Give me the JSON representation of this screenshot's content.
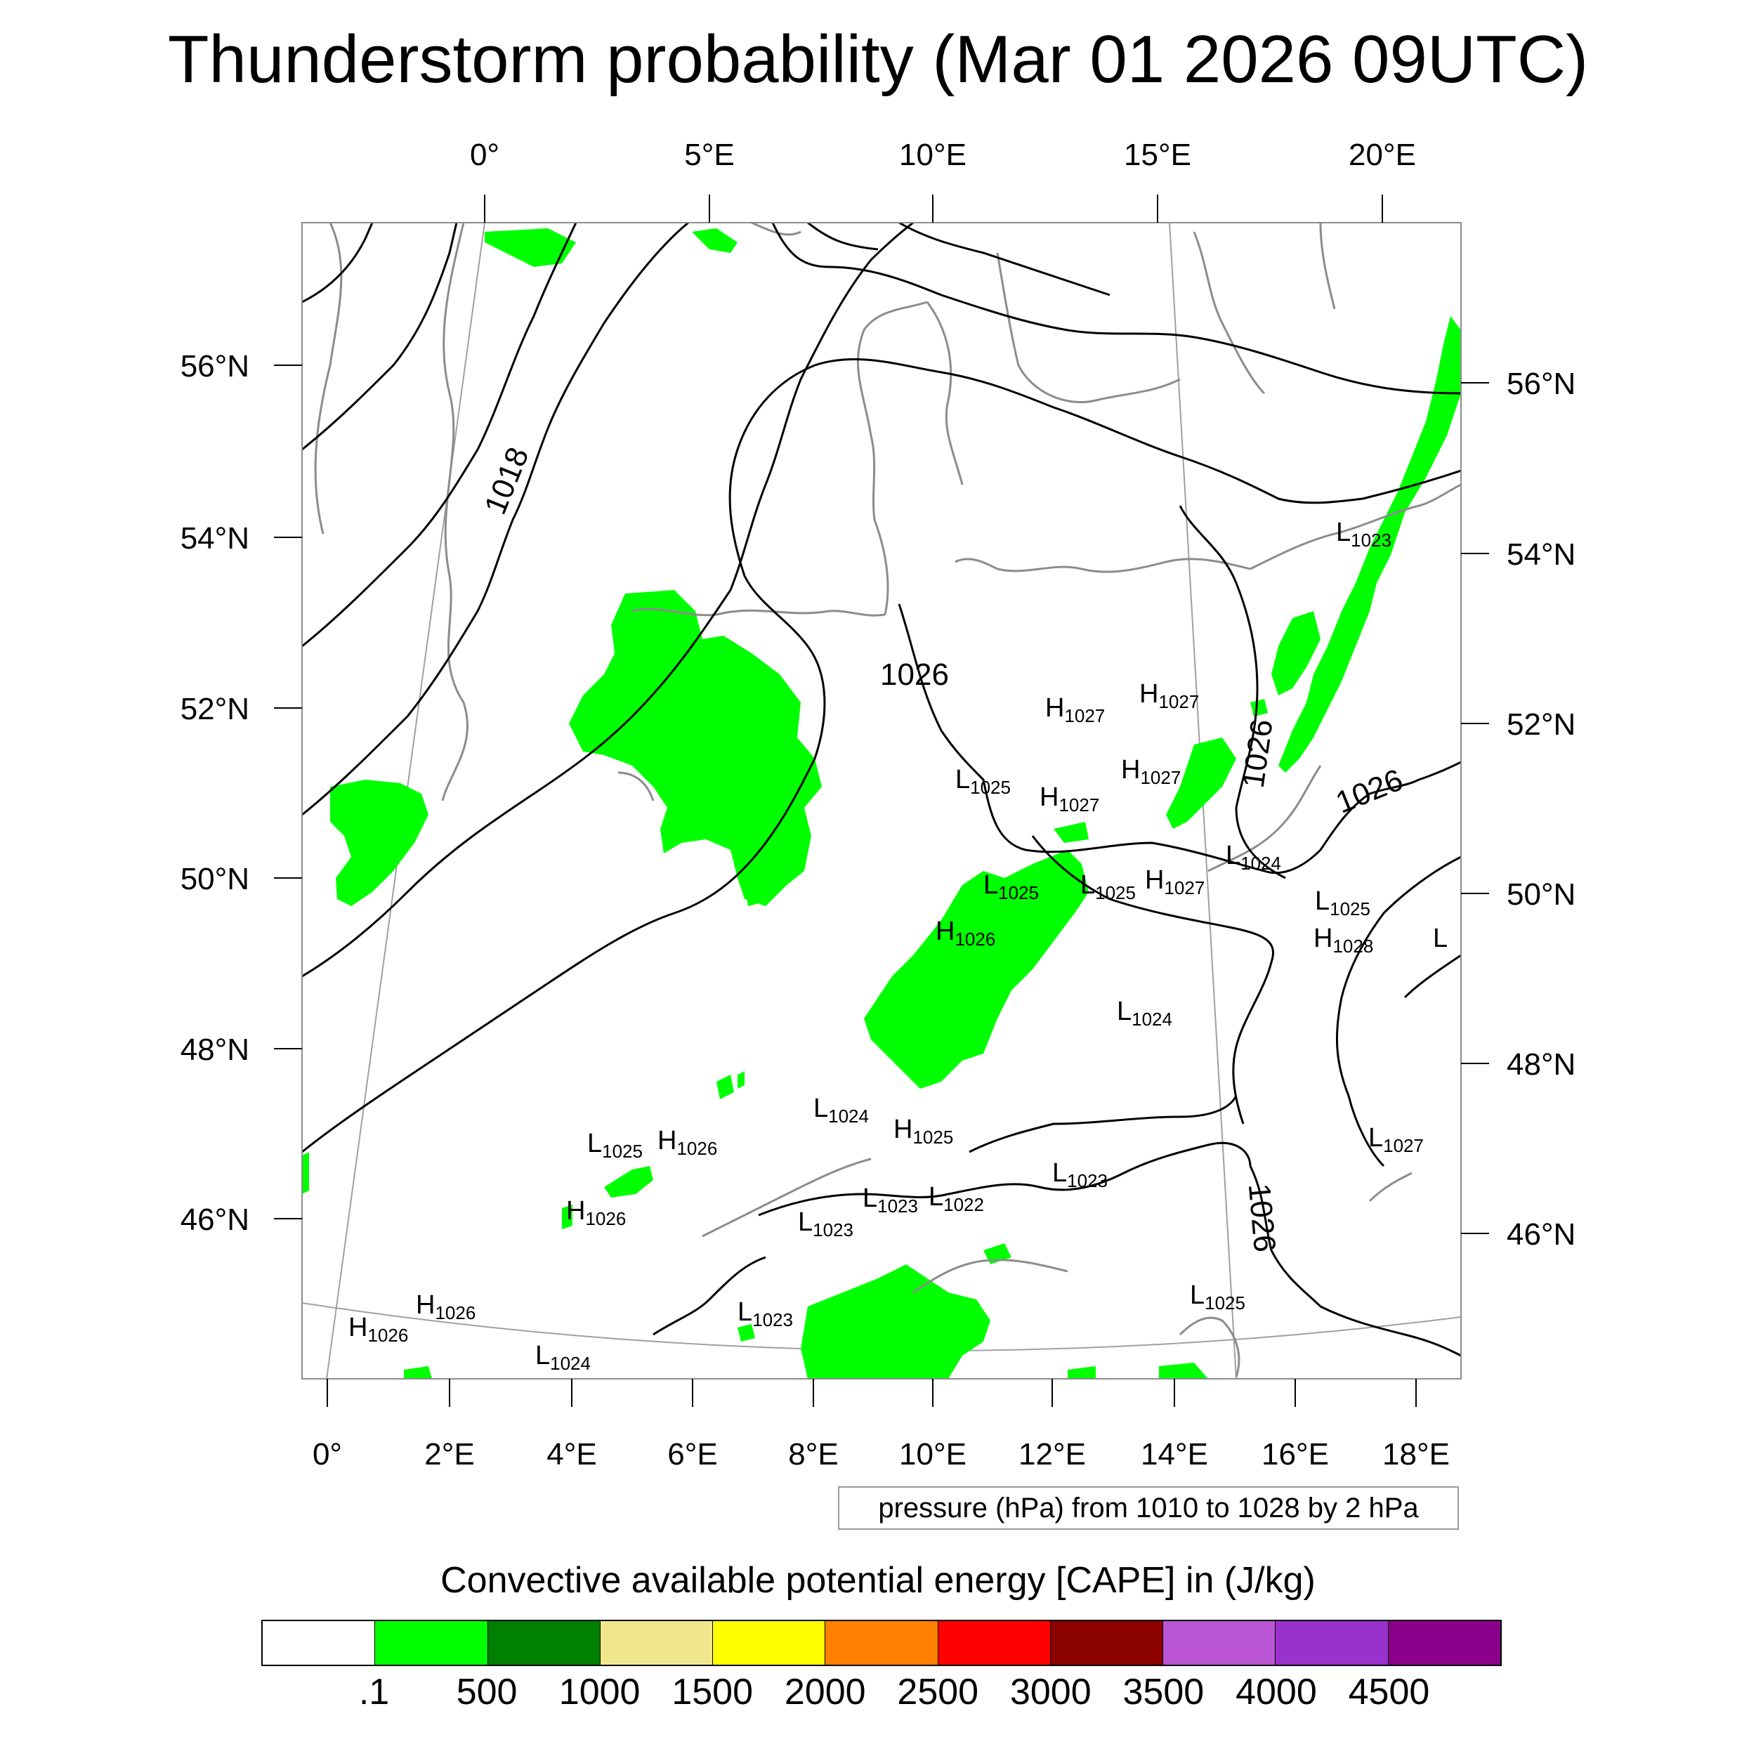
{
  "title": "Thunderstorm probability (Mar 01 2026 09UTC)",
  "map": {
    "lon_labels_top": [
      "0°",
      "5°E",
      "10°E",
      "15°E",
      "20°E"
    ],
    "lon_labels_bottom": [
      "0°",
      "2°E",
      "4°E",
      "6°E",
      "8°E",
      "10°E",
      "12°E",
      "14°E",
      "16°E",
      "18°E"
    ],
    "lat_labels_left": [
      "56°N",
      "54°N",
      "52°N",
      "50°N",
      "48°N",
      "46°N"
    ],
    "lat_labels_right": [
      "56°N",
      "54°N",
      "52°N",
      "50°N",
      "48°N",
      "46°N"
    ],
    "isobar_labels": [
      "1018",
      "1026",
      "1026",
      "1026",
      "1026"
    ],
    "pressure_centers": [
      {
        "type": "L",
        "value": "1023"
      },
      {
        "type": "H",
        "value": "1027"
      },
      {
        "type": "H",
        "value": "1027"
      },
      {
        "type": "H",
        "value": "1027"
      },
      {
        "type": "L",
        "value": "1025"
      },
      {
        "type": "H",
        "value": "1027"
      },
      {
        "type": "L",
        "value": "1024"
      },
      {
        "type": "L",
        "value": "1025"
      },
      {
        "type": "L",
        "value": "1025"
      },
      {
        "type": "H",
        "value": "1027"
      },
      {
        "type": "L",
        "value": "1025"
      },
      {
        "type": "H",
        "value": "1026"
      },
      {
        "type": "H",
        "value": "1028"
      },
      {
        "type": "L",
        "value": ""
      },
      {
        "type": "L",
        "value": "1024"
      },
      {
        "type": "L",
        "value": "1024"
      },
      {
        "type": "H",
        "value": "1025"
      },
      {
        "type": "L",
        "value": "1027"
      },
      {
        "type": "L",
        "value": "1025"
      },
      {
        "type": "H",
        "value": "1026"
      },
      {
        "type": "L",
        "value": "1023"
      },
      {
        "type": "L",
        "value": "1023"
      },
      {
        "type": "L",
        "value": "1022"
      },
      {
        "type": "H",
        "value": "1026"
      },
      {
        "type": "L",
        "value": "1023"
      },
      {
        "type": "H",
        "value": "1026"
      },
      {
        "type": "H",
        "value": "1026"
      },
      {
        "type": "L",
        "value": "1024"
      },
      {
        "type": "L",
        "value": "1023"
      },
      {
        "type": "L",
        "value": "1025"
      }
    ]
  },
  "info_box": "pressure (hPa) from 1010 to 1028 by 2 hPa",
  "legend": {
    "title": "Convective available potential energy [CAPE] in (J/kg)",
    "colors": [
      "#ffffff",
      "#00ff00",
      "#008000",
      "#f0e68c",
      "#ffff00",
      "#ff8000",
      "#ff0000",
      "#8b0000",
      "#ba55d3",
      "#9932cc",
      "#8b008b"
    ],
    "labels": [
      ".1",
      "500",
      "1000",
      "1500",
      "2000",
      "2500",
      "3000",
      "3500",
      "4000",
      "4500"
    ]
  }
}
